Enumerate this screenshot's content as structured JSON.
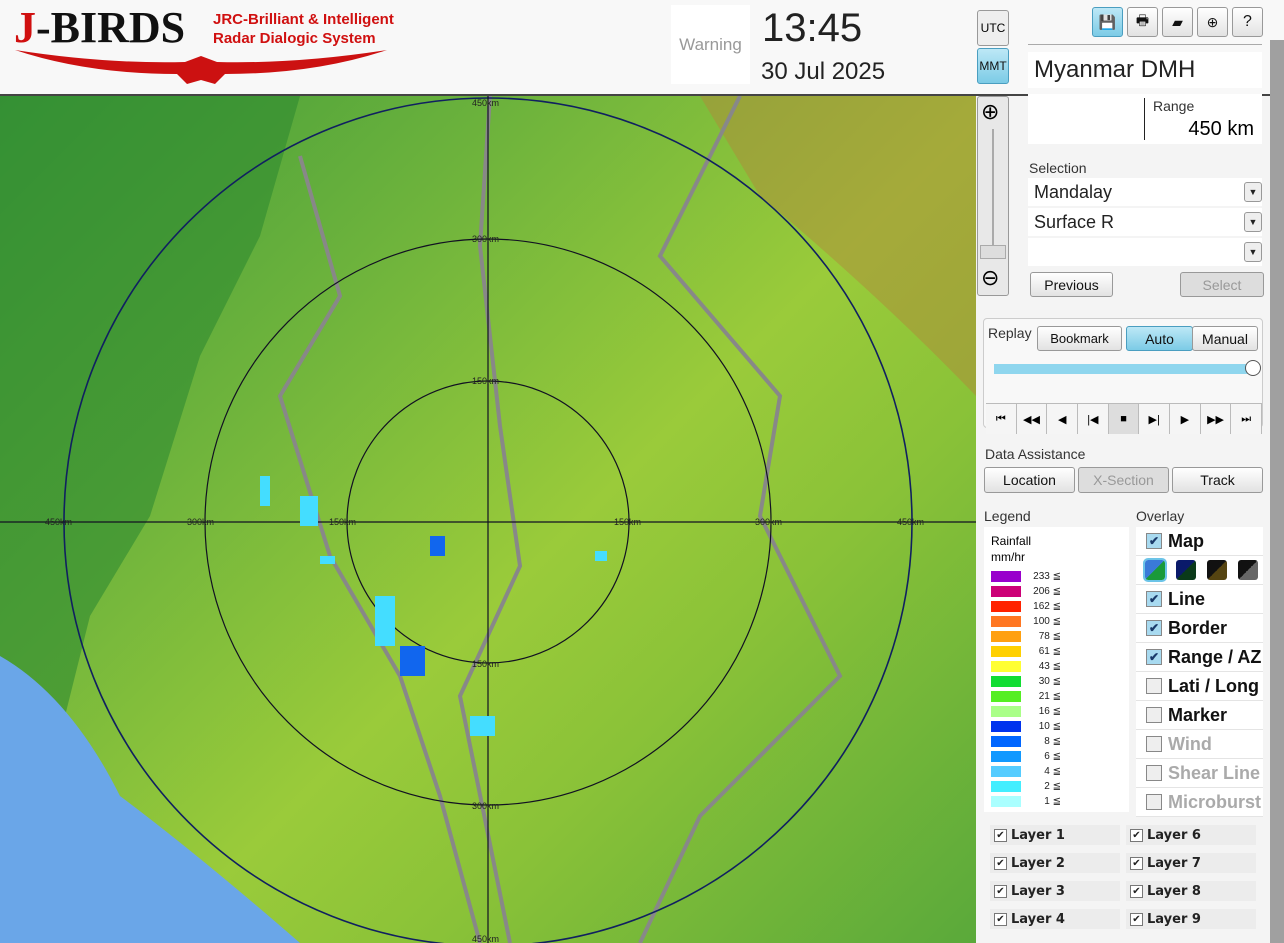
{
  "header": {
    "logo_text": "J-BIRDS",
    "logo_sub1": "JRC-Brilliant & Intelligent",
    "logo_sub2": "Radar Dialogic System",
    "warning": "Warning",
    "time": "13:45",
    "date": "30 Jul 2025",
    "tz_utc": "UTC",
    "tz_mmt": "MMT",
    "active_tz": "MMT"
  },
  "toolbar": {
    "icons": [
      "save-icon",
      "print-icon",
      "folder-open-icon",
      "add-window-icon",
      "help-icon"
    ]
  },
  "panel": {
    "org": "Myanmar DMH",
    "range_label": "Range",
    "range_value": "450 km",
    "selection_label": "Selection",
    "site": "Mandalay",
    "product": "Surface R",
    "third": "",
    "previous": "Previous",
    "select": "Select"
  },
  "replay": {
    "label": "Replay",
    "bookmark": "Bookmark",
    "auto": "Auto",
    "manual": "Manual",
    "mode": "Auto",
    "position": 1.0,
    "controls": [
      "first",
      "fast-back",
      "back",
      "step-back",
      "stop",
      "step-forward",
      "play",
      "fast-forward",
      "last"
    ]
  },
  "assist": {
    "label": "Data Assistance",
    "location": "Location",
    "xsection": "X-Section",
    "track": "Track"
  },
  "legend": {
    "label": "Legend",
    "title1": "Rainfall",
    "title2": "mm/hr",
    "items": [
      {
        "v": "233 ≦",
        "c": "#9900cc"
      },
      {
        "v": "206 ≦",
        "c": "#cc0077"
      },
      {
        "v": "162 ≦",
        "c": "#ff2200"
      },
      {
        "v": "100 ≦",
        "c": "#ff7722"
      },
      {
        "v": "78 ≦",
        "c": "#ffa010"
      },
      {
        "v": "61 ≦",
        "c": "#ffd000"
      },
      {
        "v": "43 ≦",
        "c": "#ffff33"
      },
      {
        "v": "30 ≦",
        "c": "#11dd33"
      },
      {
        "v": "21 ≦",
        "c": "#55ee22"
      },
      {
        "v": "16 ≦",
        "c": "#aaff88"
      },
      {
        "v": "10 ≦",
        "c": "#0033ee"
      },
      {
        "v": "8 ≦",
        "c": "#0066ff"
      },
      {
        "v": "6 ≦",
        "c": "#1199ff"
      },
      {
        "v": "4 ≦",
        "c": "#55ccff"
      },
      {
        "v": "2 ≦",
        "c": "#44eeff"
      },
      {
        "v": "1 ≦",
        "c": "#aaffff"
      }
    ]
  },
  "overlay": {
    "label": "Overlay",
    "items": [
      {
        "name": "Map",
        "checked": true,
        "enabled": true
      },
      {
        "name": "Line",
        "checked": true,
        "enabled": true
      },
      {
        "name": "Border",
        "checked": true,
        "enabled": true
      },
      {
        "name": "Range / AZ",
        "checked": true,
        "enabled": true
      },
      {
        "name": "Lati / Long",
        "checked": false,
        "enabled": true
      },
      {
        "name": "Marker",
        "checked": false,
        "enabled": true
      },
      {
        "name": "Wind",
        "checked": false,
        "enabled": false
      },
      {
        "name": "Shear Line",
        "checked": false,
        "enabled": false
      },
      {
        "name": "Microburst",
        "checked": false,
        "enabled": false
      }
    ]
  },
  "layers": [
    {
      "name": "Layer 1",
      "checked": true
    },
    {
      "name": "Layer 2",
      "checked": true
    },
    {
      "name": "Layer 3",
      "checked": true
    },
    {
      "name": "Layer 4",
      "checked": true
    },
    {
      "name": "Layer 6",
      "checked": true
    },
    {
      "name": "Layer 7",
      "checked": true
    },
    {
      "name": "Layer 8",
      "checked": true
    },
    {
      "name": "Layer 9",
      "checked": true
    }
  ],
  "map": {
    "range_labels": [
      "150km",
      "300km",
      "450km"
    ]
  }
}
